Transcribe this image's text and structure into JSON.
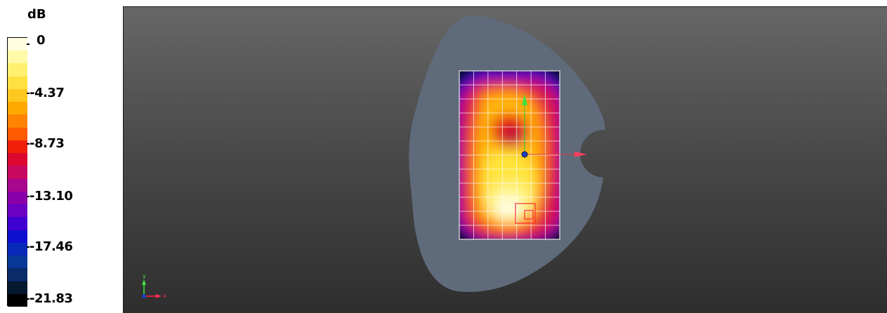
{
  "legend": {
    "unit": "dB",
    "labels": [
      "0",
      "-4.37",
      "-8.73",
      "-13.10",
      "-17.46",
      "-21.83"
    ],
    "colors": [
      "#fffde0",
      "#fff9a8",
      "#fff070",
      "#ffe040",
      "#ffc820",
      "#ffa800",
      "#ff8400",
      "#ff5a00",
      "#f0200a",
      "#dc0830",
      "#c80860",
      "#a8068e",
      "#8a00a8",
      "#6a00c0",
      "#4000d0",
      "#1010d0",
      "#0828b8",
      "#083898",
      "#0a2a68",
      "#061830",
      "#000000"
    ]
  },
  "scene": {
    "body_color": "#5f6b7b",
    "grid_color": "#ffffff",
    "axis_icons": [
      "y-axis-arrow",
      "x-axis-arrow"
    ],
    "axis_labels": {
      "x": "x",
      "y": "y"
    },
    "colors": {
      "x_axis": "#ff3050",
      "y_axis": "#40e040",
      "origin": "#2040c0"
    }
  }
}
